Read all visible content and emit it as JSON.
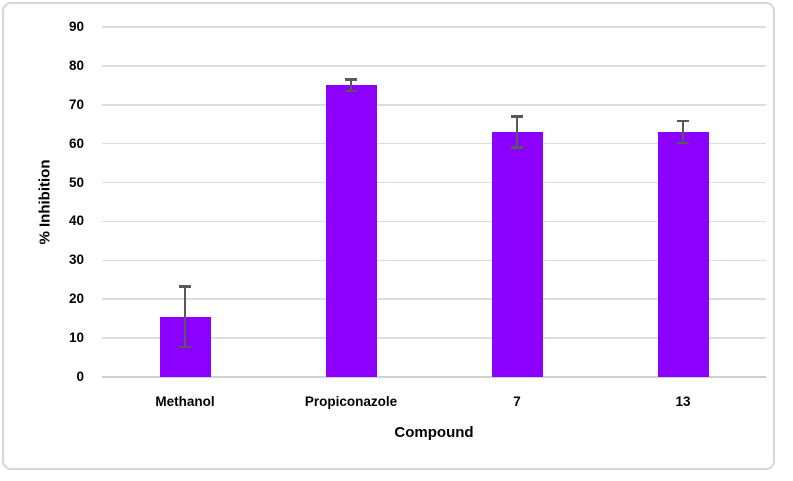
{
  "chart_data": {
    "type": "bar",
    "title": "",
    "xlabel": "Compound",
    "ylabel": "% Inhibition",
    "categories": [
      "Methanol",
      "Propiconazole",
      "7",
      "13"
    ],
    "values": [
      15.5,
      75,
      63,
      63
    ],
    "error_bars": [
      7.8,
      1.5,
      4,
      2.8
    ],
    "ylim": [
      0,
      90
    ],
    "yticks": [
      0,
      10,
      20,
      30,
      40,
      50,
      60,
      70,
      80,
      90
    ],
    "grid": true,
    "legend": "none",
    "colors": {
      "bar": "#8B00FF",
      "error_bar": "#595959",
      "gridline": "#dcdcdc",
      "axis_line": "#d0d0d0",
      "panel_border": "#d6d6d6",
      "background": "#ffffff",
      "text": "#000000"
    }
  }
}
